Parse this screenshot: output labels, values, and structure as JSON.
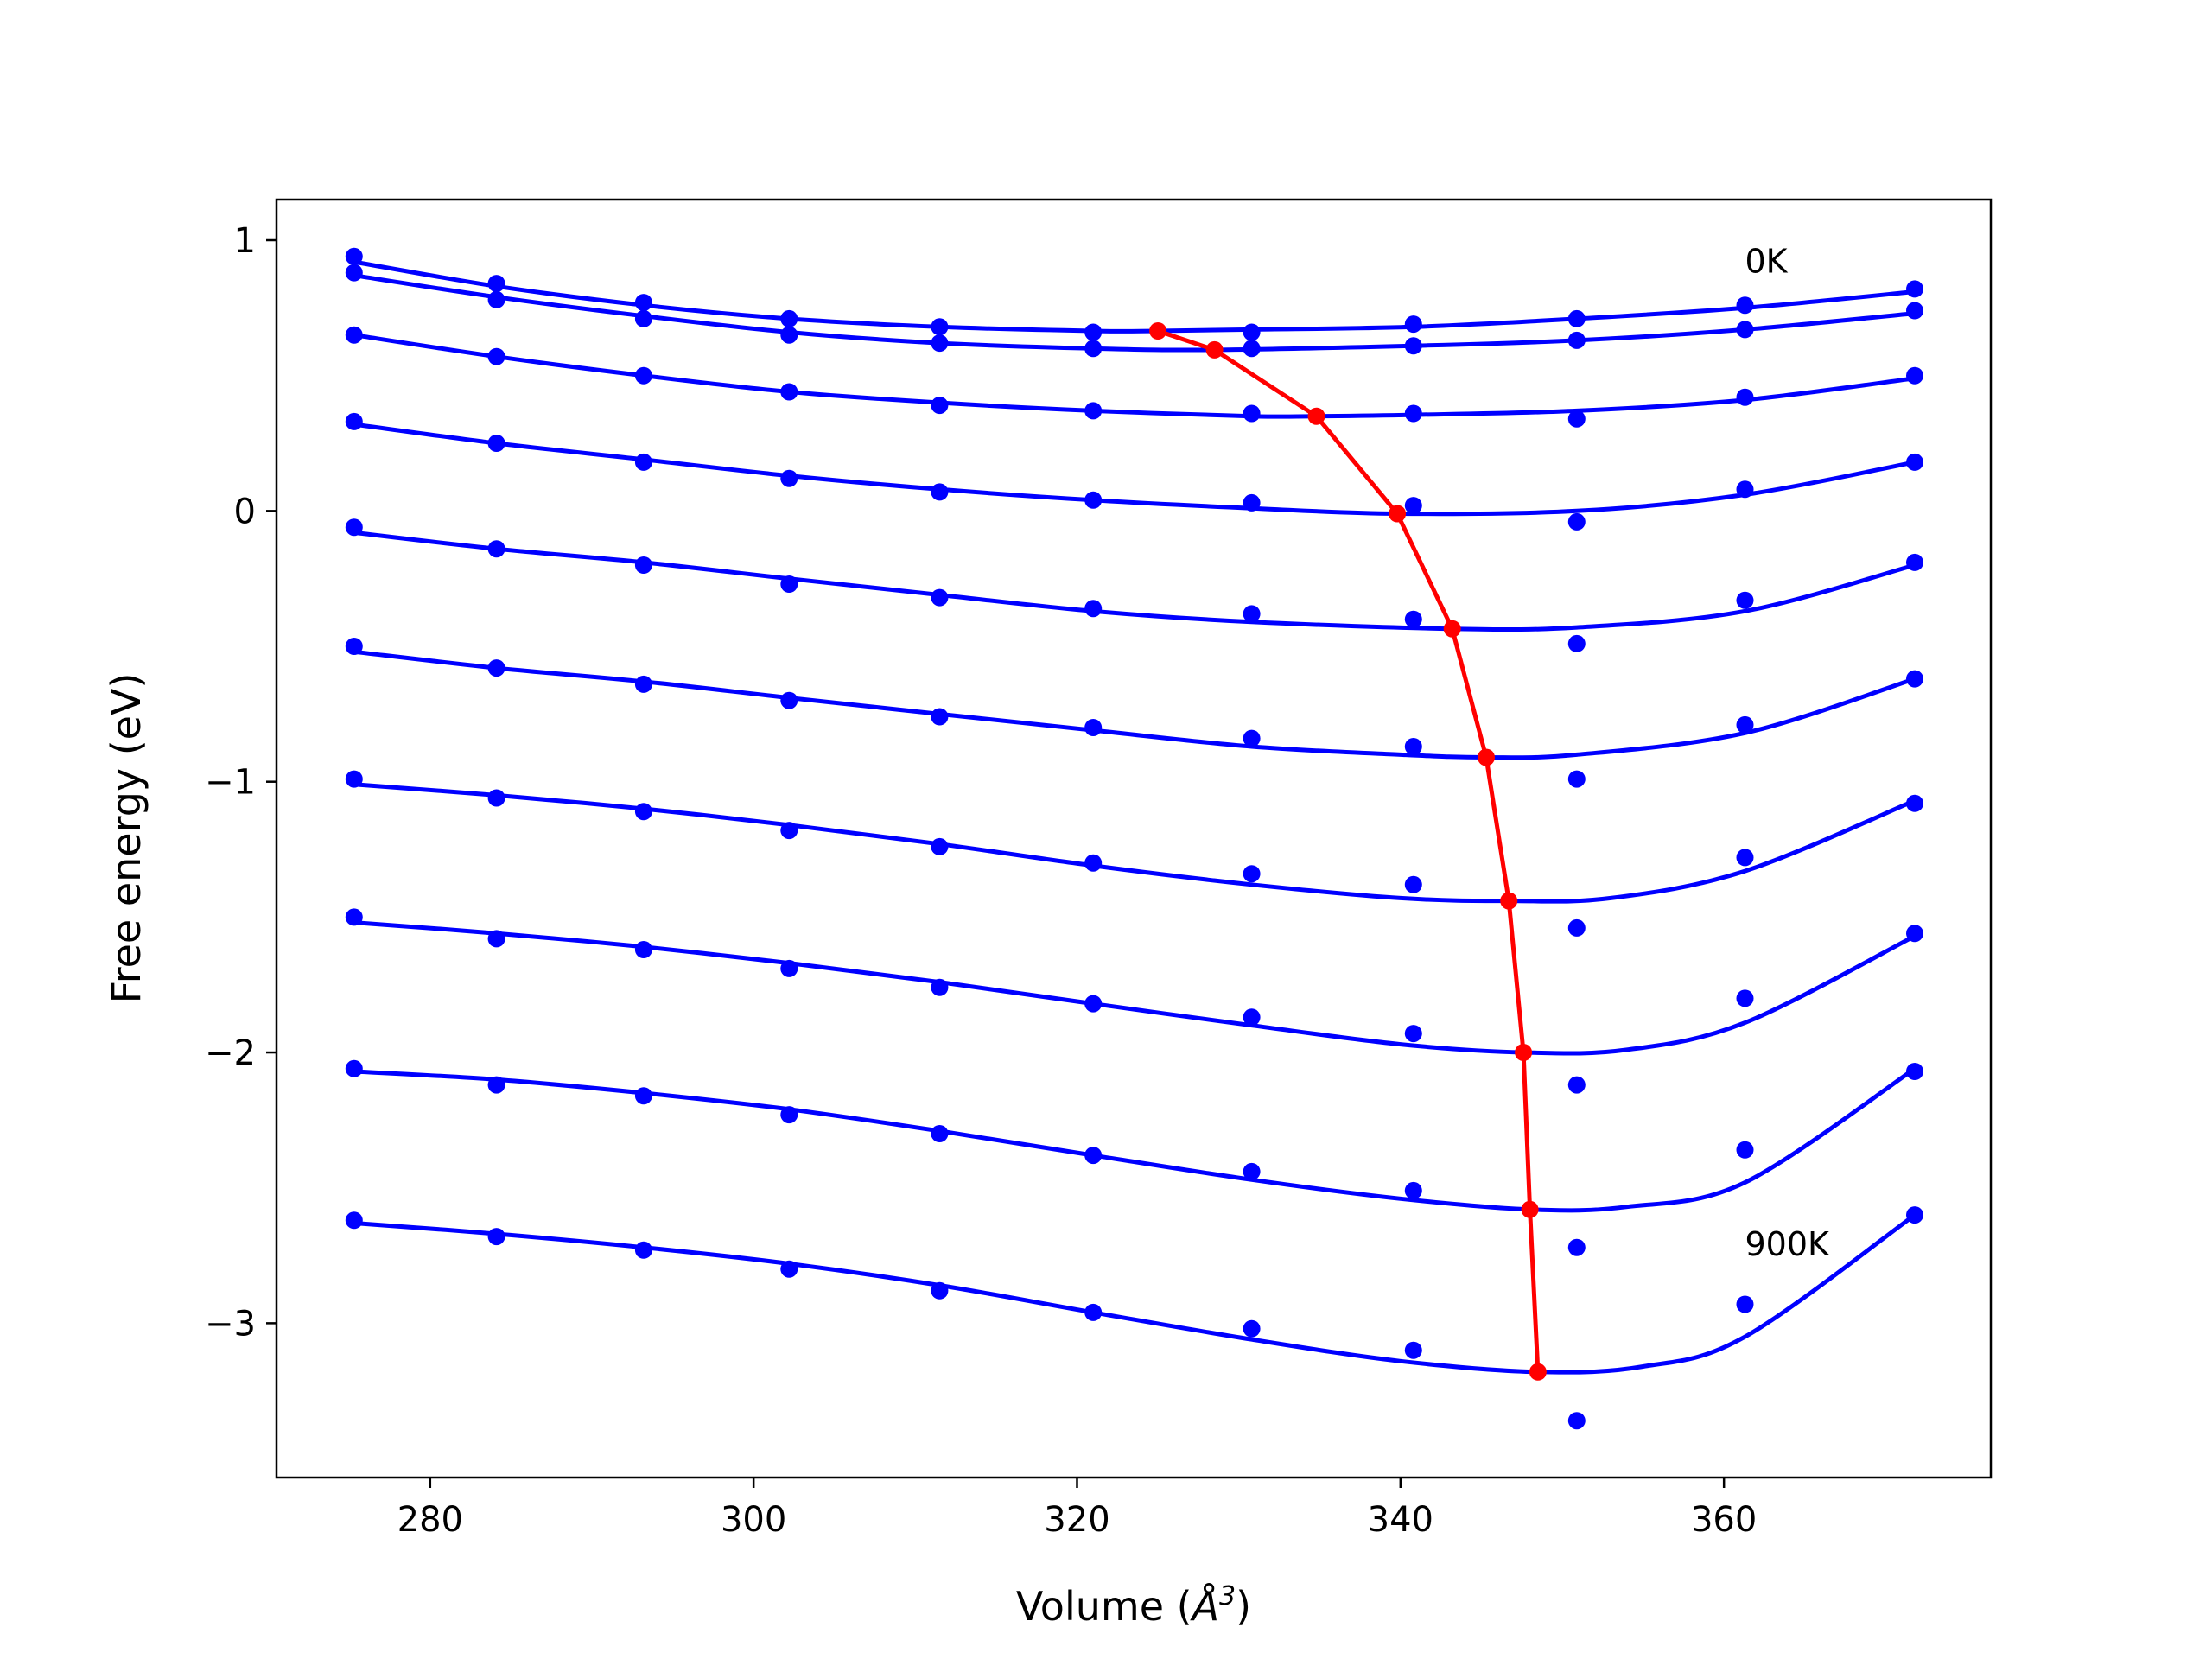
{
  "chart_data": {
    "type": "line",
    "xlabel_main": "Volume (",
    "xlabel_symbol": "Å",
    "xlabel_exp": "3",
    "xlabel_close": ")",
    "ylabel": "Free energy (eV)",
    "xlim": [
      270.5,
      376.5
    ],
    "ylim": [
      -3.57,
      1.15
    ],
    "xticks": [
      280,
      300,
      320,
      340,
      360
    ],
    "xtick_labels": [
      "280",
      "300",
      "320",
      "340",
      "360"
    ],
    "yticks": [
      1,
      0,
      -1,
      -2,
      -3
    ],
    "ytick_labels": [
      "1",
      "0",
      "−1",
      "−2",
      "−3"
    ],
    "grid": false,
    "annotations": [
      {
        "text": "0K",
        "x": 361.3,
        "y": 0.88
      },
      {
        "text": "900K",
        "x": 361.3,
        "y": -2.75
      }
    ],
    "colors": {
      "series": "#0000ff",
      "minima": "#ff0000"
    },
    "volumes": [
      275.3,
      284.1,
      293.2,
      302.2,
      311.5,
      321.0,
      330.8,
      340.8,
      350.9,
      361.3,
      371.8
    ],
    "series": [
      {
        "points": [
          0.94,
          0.84,
          0.77,
          0.71,
          0.68,
          0.66,
          0.66,
          0.69,
          0.71,
          0.76,
          0.82
        ],
        "fit": [
          [
            275.3,
            0.92
          ],
          [
            284.1,
            0.83
          ],
          [
            293.2,
            0.76
          ],
          [
            302.2,
            0.71
          ],
          [
            311.5,
            0.68
          ],
          [
            321.0,
            0.665
          ],
          [
            325.0,
            0.665
          ],
          [
            330.8,
            0.67
          ],
          [
            340.8,
            0.68
          ],
          [
            350.9,
            0.71
          ],
          [
            361.3,
            0.75
          ],
          [
            371.8,
            0.81
          ]
        ]
      },
      {
        "points": [
          0.88,
          0.78,
          0.71,
          0.65,
          0.62,
          0.6,
          0.6,
          0.61,
          0.63,
          0.67,
          0.74
        ],
        "fit": [
          [
            275.3,
            0.87
          ],
          [
            284.1,
            0.79
          ],
          [
            293.2,
            0.72
          ],
          [
            302.2,
            0.66
          ],
          [
            311.5,
            0.62
          ],
          [
            321.0,
            0.6
          ],
          [
            328.5,
            0.595
          ],
          [
            340.8,
            0.61
          ],
          [
            350.9,
            0.63
          ],
          [
            361.3,
            0.67
          ],
          [
            371.8,
            0.73
          ]
        ]
      },
      {
        "points": [
          0.65,
          0.57,
          0.5,
          0.44,
          0.39,
          0.37,
          0.36,
          0.36,
          0.34,
          0.42,
          0.5
        ],
        "fit": [
          [
            275.3,
            0.65
          ],
          [
            284.1,
            0.57
          ],
          [
            293.2,
            0.5
          ],
          [
            302.2,
            0.44
          ],
          [
            311.5,
            0.4
          ],
          [
            321.0,
            0.37
          ],
          [
            330.8,
            0.35
          ],
          [
            334.8,
            0.35
          ],
          [
            340.8,
            0.355
          ],
          [
            350.9,
            0.37
          ],
          [
            361.3,
            0.41
          ],
          [
            371.8,
            0.49
          ]
        ]
      },
      {
        "points": [
          0.33,
          0.25,
          0.18,
          0.12,
          0.07,
          0.04,
          0.03,
          0.02,
          -0.04,
          0.08,
          0.18
        ],
        "fit": [
          [
            275.3,
            0.32
          ],
          [
            284.1,
            0.25
          ],
          [
            293.2,
            0.19
          ],
          [
            302.2,
            0.13
          ],
          [
            311.5,
            0.08
          ],
          [
            321.0,
            0.04
          ],
          [
            330.8,
            0.01
          ],
          [
            339.8,
            -0.01
          ],
          [
            350.9,
            0.0
          ],
          [
            361.3,
            0.06
          ],
          [
            371.8,
            0.18
          ]
        ]
      },
      {
        "points": [
          -0.06,
          -0.14,
          -0.2,
          -0.27,
          -0.32,
          -0.36,
          -0.38,
          -0.4,
          -0.49,
          -0.33,
          -0.19
        ],
        "fit": [
          [
            275.3,
            -0.08
          ],
          [
            284.1,
            -0.14
          ],
          [
            293.2,
            -0.19
          ],
          [
            302.2,
            -0.25
          ],
          [
            311.5,
            -0.31
          ],
          [
            321.0,
            -0.37
          ],
          [
            330.8,
            -0.41
          ],
          [
            343.2,
            -0.435
          ],
          [
            350.9,
            -0.43
          ],
          [
            361.3,
            -0.37
          ],
          [
            371.8,
            -0.2
          ]
        ]
      },
      {
        "points": [
          -0.5,
          -0.58,
          -0.64,
          -0.7,
          -0.76,
          -0.8,
          -0.84,
          -0.87,
          -0.99,
          -0.79,
          -0.62
        ],
        "fit": [
          [
            275.3,
            -0.52
          ],
          [
            284.1,
            -0.58
          ],
          [
            293.2,
            -0.63
          ],
          [
            302.2,
            -0.69
          ],
          [
            311.5,
            -0.75
          ],
          [
            321.0,
            -0.81
          ],
          [
            330.8,
            -0.87
          ],
          [
            340.0,
            -0.9
          ],
          [
            345.3,
            -0.91
          ],
          [
            350.9,
            -0.9
          ],
          [
            361.3,
            -0.82
          ],
          [
            371.8,
            -0.62
          ]
        ]
      },
      {
        "points": [
          -0.99,
          -1.06,
          -1.11,
          -1.18,
          -1.24,
          -1.3,
          -1.34,
          -1.38,
          -1.54,
          -1.28,
          -1.08
        ],
        "fit": [
          [
            275.3,
            -1.01
          ],
          [
            284.1,
            -1.05
          ],
          [
            293.2,
            -1.1
          ],
          [
            302.2,
            -1.16
          ],
          [
            311.5,
            -1.23
          ],
          [
            321.0,
            -1.31
          ],
          [
            330.8,
            -1.38
          ],
          [
            340.0,
            -1.43
          ],
          [
            346.7,
            -1.44
          ],
          [
            353.0,
            -1.43
          ],
          [
            361.3,
            -1.33
          ],
          [
            371.8,
            -1.07
          ]
        ]
      },
      {
        "points": [
          -1.5,
          -1.58,
          -1.62,
          -1.69,
          -1.76,
          -1.82,
          -1.87,
          -1.93,
          -2.12,
          -1.8,
          -1.56
        ],
        "fit": [
          [
            275.3,
            -1.52
          ],
          [
            284.1,
            -1.56
          ],
          [
            293.2,
            -1.61
          ],
          [
            302.2,
            -1.67
          ],
          [
            311.5,
            -1.74
          ],
          [
            321.0,
            -1.82
          ],
          [
            330.8,
            -1.9
          ],
          [
            340.0,
            -1.97
          ],
          [
            347.6,
            -2.0
          ],
          [
            354.0,
            -1.99
          ],
          [
            361.3,
            -1.89
          ],
          [
            371.8,
            -1.57
          ]
        ]
      },
      {
        "points": [
          -2.06,
          -2.12,
          -2.16,
          -2.23,
          -2.3,
          -2.38,
          -2.44,
          -2.51,
          -2.72,
          -2.36,
          -2.07
        ],
        "fit": [
          [
            275.3,
            -2.07
          ],
          [
            284.1,
            -2.1
          ],
          [
            293.2,
            -2.15
          ],
          [
            302.2,
            -2.21
          ],
          [
            311.5,
            -2.29
          ],
          [
            321.0,
            -2.38
          ],
          [
            330.8,
            -2.47
          ],
          [
            340.0,
            -2.54
          ],
          [
            348.0,
            -2.58
          ],
          [
            354.0,
            -2.57
          ],
          [
            361.3,
            -2.48
          ],
          [
            371.8,
            -2.06
          ]
        ]
      },
      {
        "points": [
          -2.62,
          -2.68,
          -2.73,
          -2.8,
          -2.88,
          -2.96,
          -3.02,
          -3.1,
          -3.36,
          -2.93,
          -2.6
        ],
        "fit": [
          [
            275.3,
            -2.63
          ],
          [
            284.1,
            -2.67
          ],
          [
            293.2,
            -2.72
          ],
          [
            302.2,
            -2.78
          ],
          [
            311.5,
            -2.86
          ],
          [
            321.0,
            -2.96
          ],
          [
            330.8,
            -3.06
          ],
          [
            340.0,
            -3.14
          ],
          [
            348.5,
            -3.18
          ],
          [
            355.0,
            -3.16
          ],
          [
            361.3,
            -3.05
          ],
          [
            371.8,
            -2.6
          ]
        ]
      }
    ],
    "minima": {
      "x": [
        325.0,
        328.5,
        334.8,
        339.8,
        343.2,
        345.3,
        346.7,
        347.6,
        348.0,
        348.5
      ],
      "y": [
        0.665,
        0.595,
        0.35,
        -0.01,
        -0.435,
        -0.91,
        -1.44,
        -2.0,
        -2.58,
        -3.18
      ]
    }
  }
}
